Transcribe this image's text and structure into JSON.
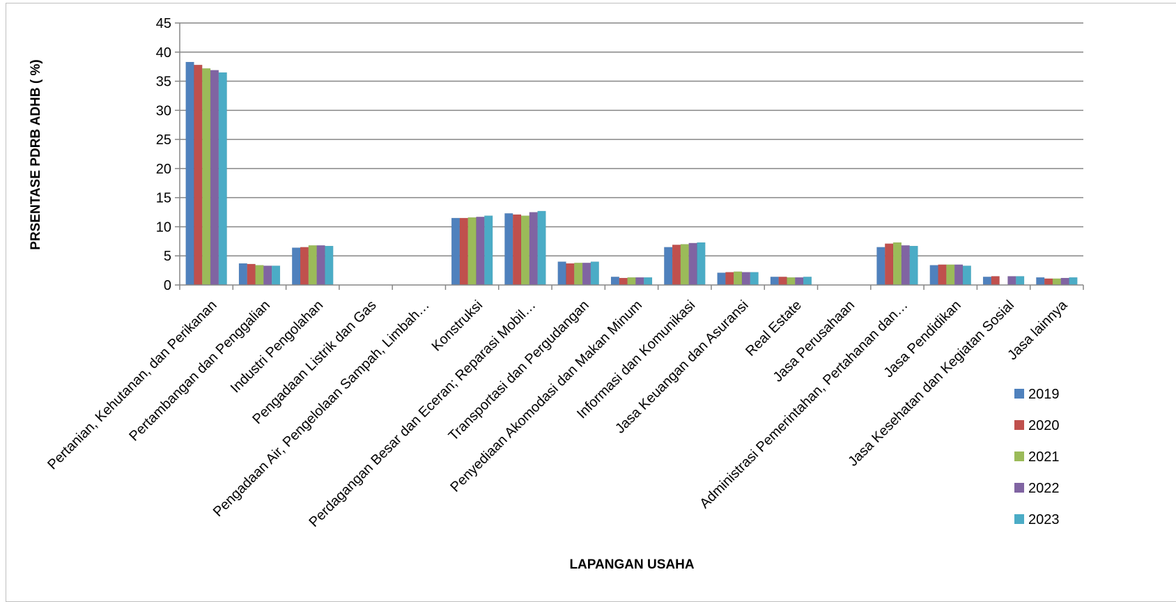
{
  "chart_data": {
    "type": "bar",
    "xlabel": "LAPANGAN USAHA",
    "ylabel": "PRSENTASE PDRB ADHB ( %)",
    "ylim": [
      0,
      45
    ],
    "yticks": [
      "0",
      "5",
      "10",
      "15",
      "20",
      "25",
      "30",
      "35",
      "40",
      "45"
    ],
    "grid": true,
    "legend_position": "right",
    "categories": [
      "Pertanian, Kehutanan, dan Perikanan",
      "Pertambangan dan Penggalian",
      "Industri Pengolahan",
      "Pengadaan Listrik dan Gas",
      "Pengadaan Air, Pengelolaan Sampah, Limbah…",
      "Konstruksi",
      "Perdagangan Besar dan Eceran; Reparasi Mobil…",
      "Transportasi dan Pergudangan",
      "Penyediaan Akomodasi dan Makan Minum",
      "Informasi dan Komunikasi",
      "Jasa Keuangan dan Asuransi",
      "Real Estate",
      "Jasa Perusahaan",
      "Administrasi Pemerintahan, Pertahanan dan…",
      "Jasa Pendidikan",
      "Jasa Kesehatan dan Kegiatan Sosial",
      "Jasa lainnya"
    ],
    "series": [
      {
        "name": "2019",
        "color": "#4f81bd",
        "values": [
          38.3,
          3.7,
          6.4,
          0,
          0,
          11.5,
          12.3,
          4.0,
          1.4,
          6.5,
          2.1,
          1.4,
          0,
          6.5,
          3.4,
          1.4,
          1.3
        ]
      },
      {
        "name": "2020",
        "color": "#c0504d",
        "values": [
          37.8,
          3.6,
          6.5,
          0,
          0,
          11.5,
          12.1,
          3.7,
          1.2,
          6.9,
          2.2,
          1.4,
          0,
          7.1,
          3.5,
          1.5,
          1.1
        ]
      },
      {
        "name": "2021",
        "color": "#9bbb59",
        "values": [
          37.2,
          3.4,
          6.8,
          0,
          0,
          11.6,
          11.9,
          3.8,
          1.3,
          7.0,
          2.3,
          1.3,
          0,
          7.3,
          3.5,
          0,
          1.1
        ]
      },
      {
        "name": "2022",
        "color": "#8064a2",
        "values": [
          36.9,
          3.3,
          6.8,
          0,
          0,
          11.7,
          12.5,
          3.8,
          1.3,
          7.2,
          2.2,
          1.3,
          0,
          6.8,
          3.5,
          1.5,
          1.2
        ]
      },
      {
        "name": "2023",
        "color": "#4bacc6",
        "values": [
          36.5,
          3.3,
          6.7,
          0,
          0,
          11.9,
          12.7,
          4.0,
          1.3,
          7.3,
          2.2,
          1.4,
          0,
          6.7,
          3.3,
          1.5,
          1.3
        ]
      }
    ]
  }
}
